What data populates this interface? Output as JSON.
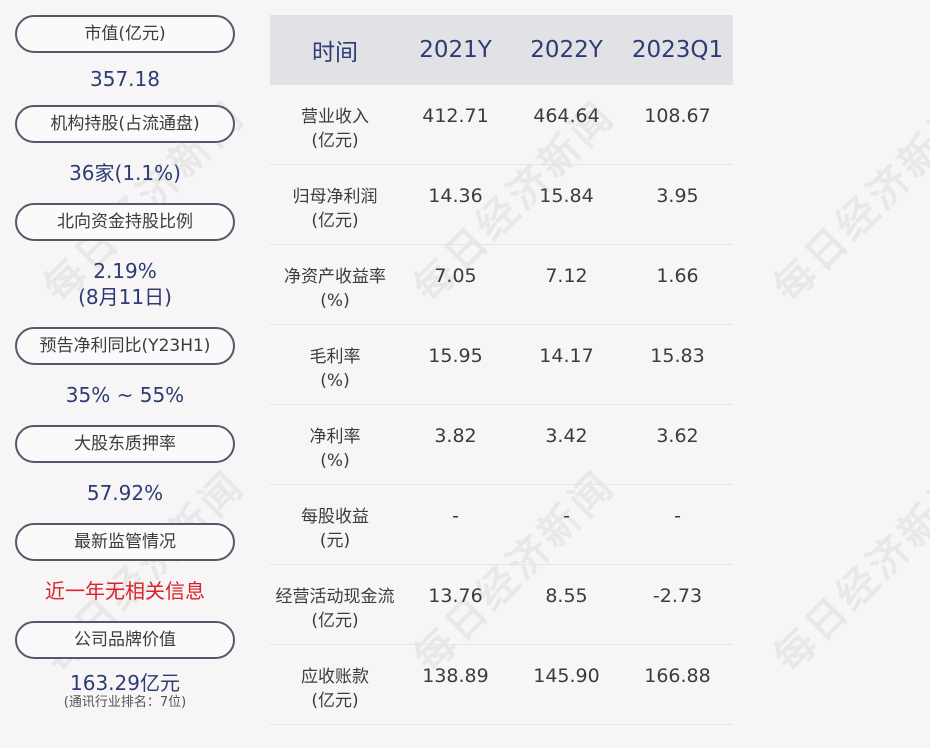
{
  "watermark": "每日经济新闻",
  "left_panel": [
    {
      "label": "市值(亿元)",
      "value": [
        "357.18"
      ]
    },
    {
      "label": "机构持股(占流通盘)",
      "value": [
        "36家(1.1%)"
      ]
    },
    {
      "label": "北向资金持股比例",
      "value": [
        "2.19%",
        "(8月11日)"
      ]
    },
    {
      "label": "预告净利同比(Y23H1)",
      "value": [
        "35% ~ 55%"
      ]
    },
    {
      "label": "大股东质押率",
      "value": [
        "57.92%"
      ]
    },
    {
      "label": "最新监管情况",
      "value": [
        "近一年无相关信息"
      ],
      "color": "#d9232a"
    },
    {
      "label": "公司品牌价值",
      "value": [
        "163.29亿元"
      ],
      "note": "(通讯行业排名：7位)"
    }
  ],
  "table": {
    "headers": [
      "时间",
      "2021Y",
      "2022Y",
      "2023Q1"
    ],
    "rows": [
      {
        "label": [
          "营业收入",
          "(亿元)"
        ],
        "values": [
          "412.71",
          "464.64",
          "108.67"
        ]
      },
      {
        "label": [
          "归母净利润",
          "(亿元)"
        ],
        "values": [
          "14.36",
          "15.84",
          "3.95"
        ]
      },
      {
        "label": [
          "净资产收益率",
          "(%)"
        ],
        "values": [
          "7.05",
          "7.12",
          "1.66"
        ]
      },
      {
        "label": [
          "毛利率",
          "(%)"
        ],
        "values": [
          "15.95",
          "14.17",
          "15.83"
        ]
      },
      {
        "label": [
          "净利率",
          "(%)"
        ],
        "values": [
          "3.82",
          "3.42",
          "3.62"
        ]
      },
      {
        "label": [
          "每股收益",
          "(元)"
        ],
        "values": [
          "-",
          "-",
          "-"
        ]
      },
      {
        "label": [
          "经营活动现金流",
          "(亿元)"
        ],
        "values": [
          "13.76",
          "8.55",
          "-2.73"
        ]
      },
      {
        "label": [
          "应收账款",
          "(亿元)"
        ],
        "values": [
          "138.89",
          "145.90",
          "166.88"
        ]
      }
    ]
  }
}
